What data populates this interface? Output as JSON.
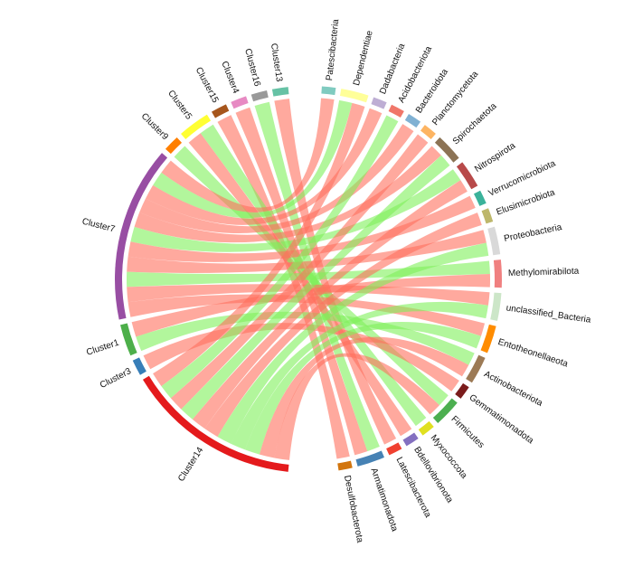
{
  "chart_data": {
    "type": "chord",
    "groups_left": [
      {
        "name": "Cluster14",
        "color": "#e41a1c"
      },
      {
        "name": "Cluster3",
        "color": "#377eb8"
      },
      {
        "name": "Cluster1",
        "color": "#4daf4a"
      },
      {
        "name": "Cluster7",
        "color": "#984ea3"
      },
      {
        "name": "Cluster9",
        "color": "#ff7f00"
      },
      {
        "name": "Cluster5",
        "color": "#ffff33"
      },
      {
        "name": "Cluster15",
        "color": "#a6561c"
      },
      {
        "name": "Cluster4",
        "color": "#e78ac3"
      },
      {
        "name": "Cluster16",
        "color": "#999999"
      },
      {
        "name": "Cluster13",
        "color": "#66c2a5"
      }
    ],
    "groups_right": [
      {
        "name": "Patescibacteria",
        "color": "#80cbc0"
      },
      {
        "name": "Dependentiae",
        "color": "#ffff99"
      },
      {
        "name": "Dadabacteria",
        "color": "#beaed4"
      },
      {
        "name": "Acidobacteriota",
        "color": "#f0776a"
      },
      {
        "name": "Bacteroidota",
        "color": "#80b1d3"
      },
      {
        "name": "Planctomycetota",
        "color": "#fdb462"
      },
      {
        "name": "Spirochaetota",
        "color": "#8c7355"
      },
      {
        "name": "Nitrospirota",
        "color": "#b84a4a"
      },
      {
        "name": "Verrucomicrobiota",
        "color": "#3bb29a"
      },
      {
        "name": "Elusimicrobiota",
        "color": "#bdb76b"
      },
      {
        "name": "Proteobacteria",
        "color": "#d9d9d9"
      },
      {
        "name": "Methylomirabilota",
        "color": "#f08080"
      },
      {
        "name": "unclassified_Bacteria",
        "color": "#cce6c8"
      },
      {
        "name": "Entotheonellaeota",
        "color": "#ff8c00"
      },
      {
        "name": "Actinobacteriota",
        "color": "#9c7a55"
      },
      {
        "name": "Gemmatimonadota",
        "color": "#7b1c1c"
      },
      {
        "name": "Firmicutes",
        "color": "#4caf50"
      },
      {
        "name": "Myxococcota",
        "color": "#e0e020"
      },
      {
        "name": "Bdellovibrionota",
        "color": "#8470c0"
      },
      {
        "name": "Latescibacterota",
        "color": "#f04030"
      },
      {
        "name": "Armatimonadota",
        "color": "#4682b4"
      },
      {
        "name": "Desulfobacterota",
        "color": "#d2750e"
      }
    ],
    "link_colors": {
      "red": "#ff6f5e",
      "green": "#7ef05a"
    },
    "links": [
      {
        "source": "Cluster13",
        "target": "Latescibacterota",
        "color": "red"
      },
      {
        "source": "Cluster16",
        "target": "Armatimonadota",
        "color": "green"
      },
      {
        "source": "Cluster4",
        "target": "Armatimonadota",
        "color": "red"
      },
      {
        "source": "Cluster15",
        "target": "Desulfobacterota",
        "color": "red"
      },
      {
        "source": "Cluster5",
        "target": "Bdellovibrionota",
        "color": "red"
      },
      {
        "source": "Cluster5",
        "target": "Myxococcota",
        "color": "green"
      },
      {
        "source": "Cluster9",
        "target": "Firmicutes",
        "color": "green"
      },
      {
        "source": "Cluster7",
        "target": "Patescibacteria",
        "color": "red"
      },
      {
        "source": "Cluster7",
        "target": "Dependentiae",
        "color": "green"
      },
      {
        "source": "Cluster7",
        "target": "Dadabacteria",
        "color": "red"
      },
      {
        "source": "Cluster7",
        "target": "Bacteroidota",
        "color": "red"
      },
      {
        "source": "Cluster7",
        "target": "Spirochaetota",
        "color": "red"
      },
      {
        "source": "Cluster7",
        "target": "Nitrospirota",
        "color": "green"
      },
      {
        "source": "Cluster7",
        "target": "Verrucomicrobiota",
        "color": "red"
      },
      {
        "source": "Cluster7",
        "target": "Proteobacteria",
        "color": "red"
      },
      {
        "source": "Cluster7",
        "target": "Methylomirabilota",
        "color": "green"
      },
      {
        "source": "Cluster7",
        "target": "unclassified_Bacteria",
        "color": "red"
      },
      {
        "source": "Cluster7",
        "target": "Entotheonellaeota",
        "color": "red"
      },
      {
        "source": "Cluster1",
        "target": "Methylomirabilota",
        "color": "red"
      },
      {
        "source": "Cluster1",
        "target": "Actinobacteriota",
        "color": "green"
      },
      {
        "source": "Cluster3",
        "target": "Gemmatimonadota",
        "color": "red"
      },
      {
        "source": "Cluster14",
        "target": "Dependentiae",
        "color": "red"
      },
      {
        "source": "Cluster14",
        "target": "Acidobacteriota",
        "color": "green"
      },
      {
        "source": "Cluster14",
        "target": "Planctomycetota",
        "color": "red"
      },
      {
        "source": "Cluster14",
        "target": "Spirochaetota",
        "color": "green"
      },
      {
        "source": "Cluster14",
        "target": "Nitrospirota",
        "color": "red"
      },
      {
        "source": "Cluster14",
        "target": "Elusimicrobiota",
        "color": "red"
      },
      {
        "source": "Cluster14",
        "target": "Proteobacteria",
        "color": "green"
      },
      {
        "source": "Cluster14",
        "target": "unclassified_Bacteria",
        "color": "green"
      },
      {
        "source": "Cluster14",
        "target": "Entotheonellaeota",
        "color": "green"
      },
      {
        "source": "Cluster14",
        "target": "Actinobacteriota",
        "color": "red"
      },
      {
        "source": "Cluster14",
        "target": "Firmicutes",
        "color": "red"
      }
    ]
  }
}
